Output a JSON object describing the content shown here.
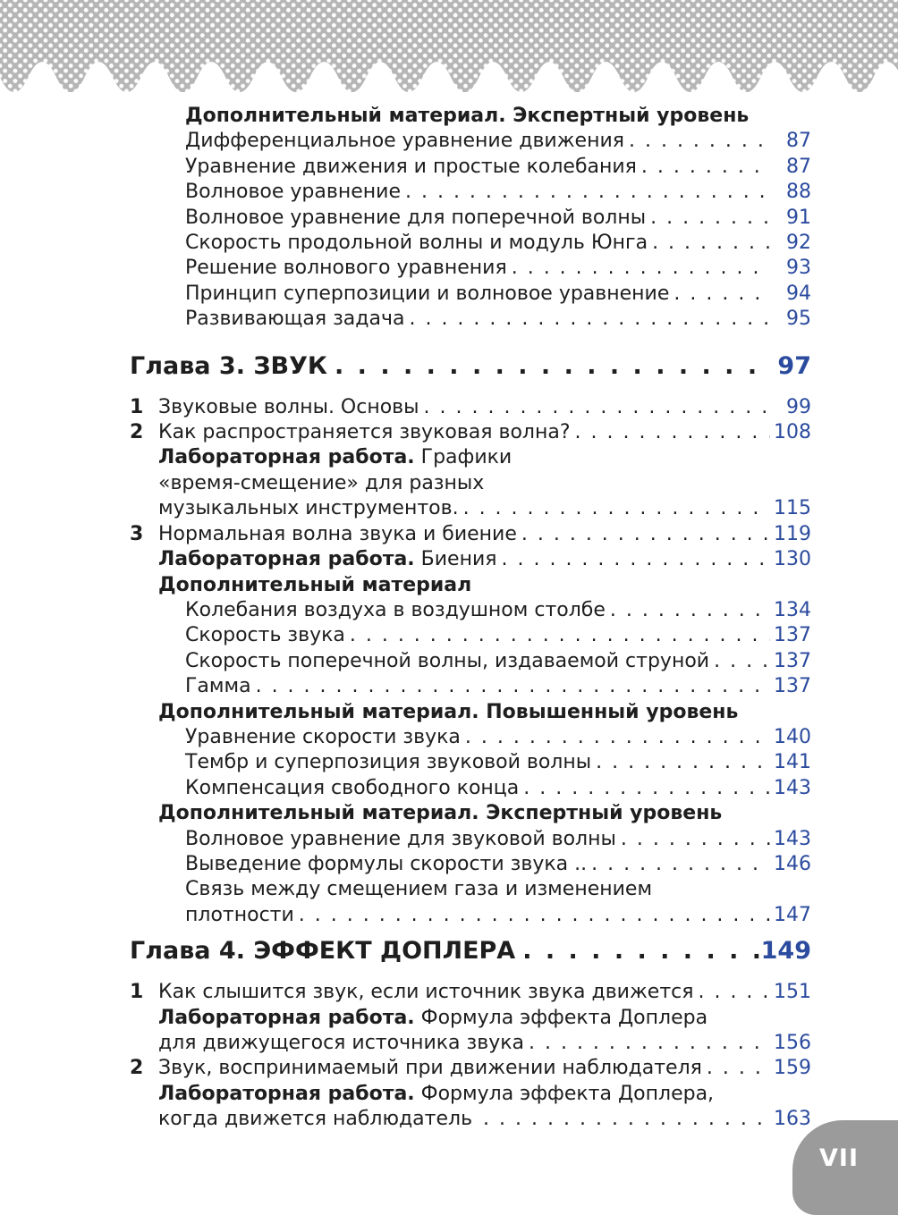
{
  "page": {
    "number_label": "VII",
    "colors": {
      "accent": "#2b4b9e",
      "text": "#1e1e1e",
      "tab": "#9b9b9b",
      "halftone_gray": "#b6b6b6"
    }
  },
  "toc": {
    "rows": [
      {
        "type": "subheader",
        "level": 2,
        "bold": "Дополнительный материал. Экспертный уровень"
      },
      {
        "type": "sub",
        "level": 2,
        "text": "Дифференциальное уравнение движения",
        "page": "87"
      },
      {
        "type": "sub",
        "level": 2,
        "text": "Уравнение движения и простые колебания",
        "page": "87"
      },
      {
        "type": "sub",
        "level": 2,
        "text": "Волновое уравнение",
        "page": "88"
      },
      {
        "type": "sub",
        "level": 2,
        "text": "Волновое уравнение для поперечной волны",
        "page": "91"
      },
      {
        "type": "sub",
        "level": 2,
        "text": "Скорость продольной волны и модуль Юнга",
        "page": "92"
      },
      {
        "type": "sub",
        "level": 2,
        "text": "Решение волнового уравнения",
        "page": "93"
      },
      {
        "type": "sub",
        "level": 2,
        "text": "Принцип суперпозиции и волновое уравнение",
        "page": "94"
      },
      {
        "type": "sub",
        "level": 2,
        "text": "Развивающая задача",
        "page": "95"
      },
      {
        "type": "chapter",
        "text": "Глава 3. ЗВУК",
        "page": "97"
      },
      {
        "type": "item",
        "num": "1",
        "text": "Звуковые волны. Основы",
        "page": "99"
      },
      {
        "type": "item",
        "num": "2",
        "text": "Как распространяется звуковая волна?",
        "page": "108"
      },
      {
        "type": "lab",
        "level": 1,
        "bold": "Лабораторная работа.",
        "text": " Графики"
      },
      {
        "type": "cont",
        "level": 1,
        "text": "«время-смещение» для разных"
      },
      {
        "type": "cont",
        "level": 1,
        "text": "музыкальных инструментов.",
        "page": "115"
      },
      {
        "type": "item",
        "num": "3",
        "text": "Нормальная волна звука и биение",
        "page": "119"
      },
      {
        "type": "lab",
        "level": 1,
        "bold": "Лабораторная работа.",
        "text": " Биения",
        "page": "130"
      },
      {
        "type": "subheader",
        "level": 1,
        "bold": "Дополнительный материал"
      },
      {
        "type": "sub",
        "level": 2,
        "text": "Колебания воздуха в воздушном столбе",
        "page": "134"
      },
      {
        "type": "sub",
        "level": 2,
        "text": "Скорость звука",
        "page": "137"
      },
      {
        "type": "sub",
        "level": 2,
        "text": "Скорость поперечной волны, издаваемой струной",
        "page": "137"
      },
      {
        "type": "sub",
        "level": 2,
        "text": "Гамма",
        "page": "137"
      },
      {
        "type": "subheader",
        "level": 1,
        "bold": "Дополнительный материал. Повышенный уровень"
      },
      {
        "type": "sub",
        "level": 2,
        "text": "Уравнение скорости звука",
        "page": "140"
      },
      {
        "type": "sub",
        "level": 2,
        "text": "Тембр и суперпозиция звуковой волны",
        "page": " 141"
      },
      {
        "type": "sub",
        "level": 2,
        "text": "Компенсация свободного конца",
        "page": "143"
      },
      {
        "type": "subheader",
        "level": 1,
        "bold": "Дополнительный материал. Экспертный уровень"
      },
      {
        "type": "sub",
        "level": 2,
        "text": "Волновое уравнение для звуковой волны",
        "page": "143"
      },
      {
        "type": "sub",
        "level": 2,
        "text": "Выведение формулы скорости звука ..",
        "page": "146"
      },
      {
        "type": "cont",
        "level": 2,
        "text": "Связь между смещением газа и изменением"
      },
      {
        "type": "cont",
        "level": 2,
        "text": "плотности",
        "page": "147"
      },
      {
        "type": "chapter",
        "text": "Глава 4. ЭФФЕКТ ДОПЛЕРА",
        "page": "149"
      },
      {
        "type": "item",
        "num": "1",
        "text": "Как слышится звук, если источник звука движется",
        "page": "151"
      },
      {
        "type": "lab",
        "level": 1,
        "bold": "Лабораторная работа.",
        "text": " Формула эффекта Доплера"
      },
      {
        "type": "cont",
        "level": 1,
        "text": "для движущегося источника звука",
        "page": "156"
      },
      {
        "type": "item",
        "num": "2",
        "text": "Звук, воспринимаемый при движении наблюдателя",
        "page": "159"
      },
      {
        "type": "lab",
        "level": 1,
        "bold": "Лабораторная работа.",
        "text": " Формула эффекта Доплера,"
      },
      {
        "type": "cont",
        "level": 1,
        "text": "когда движется наблюдатель ",
        "page": "163"
      }
    ]
  }
}
